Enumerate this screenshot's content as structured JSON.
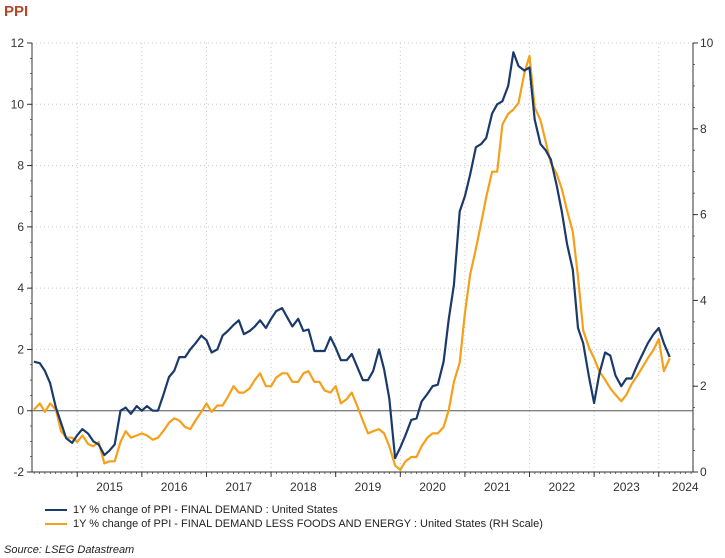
{
  "header": {
    "title": "PPI"
  },
  "source": "Source:  LSEG Datastream",
  "colors": {
    "series1": "#1a3a6b",
    "series2": "#f5a01a",
    "grid": "#c8c8c8",
    "axis": "#333333",
    "title": "#b5482b"
  },
  "chart_data": {
    "type": "line",
    "title": "PPI",
    "x_axis": {
      "min": 2014.3,
      "max": 2024.53,
      "tick_labels": [
        "2015",
        "2016",
        "2017",
        "2018",
        "2019",
        "2020",
        "2021",
        "2022",
        "2023",
        "2024"
      ]
    },
    "y_left": {
      "min": -2,
      "max": 12,
      "ticks": [
        -2,
        0,
        2,
        4,
        6,
        8,
        10,
        12
      ]
    },
    "y_right": {
      "min": 0,
      "max": 10,
      "ticks": [
        0,
        2,
        4,
        6,
        8,
        10
      ]
    },
    "grid": true,
    "legend_position": "bottom",
    "series": [
      {
        "name": "1Y % change of PPI - FINAL DEMAND : United States",
        "axis": "left",
        "points": [
          [
            2014.33,
            1.6
          ],
          [
            2014.42,
            1.55
          ],
          [
            2014.5,
            1.3
          ],
          [
            2014.58,
            0.9
          ],
          [
            2014.67,
            0.1
          ],
          [
            2014.75,
            -0.4
          ],
          [
            2014.83,
            -0.9
          ],
          [
            2014.92,
            -1.05
          ],
          [
            2015.0,
            -0.8
          ],
          [
            2015.08,
            -0.6
          ],
          [
            2015.17,
            -0.75
          ],
          [
            2015.25,
            -1.0
          ],
          [
            2015.33,
            -1.1
          ],
          [
            2015.42,
            -1.45
          ],
          [
            2015.5,
            -1.3
          ],
          [
            2015.58,
            -1.1
          ],
          [
            2015.67,
            0.0
          ],
          [
            2015.75,
            0.1
          ],
          [
            2015.83,
            -0.1
          ],
          [
            2015.92,
            0.15
          ],
          [
            2016.0,
            0.0
          ],
          [
            2016.08,
            0.15
          ],
          [
            2016.17,
            0.0
          ],
          [
            2016.25,
            0.0
          ],
          [
            2016.33,
            0.5
          ],
          [
            2016.42,
            1.1
          ],
          [
            2016.5,
            1.3
          ],
          [
            2016.58,
            1.75
          ],
          [
            2016.67,
            1.75
          ],
          [
            2016.75,
            2.0
          ],
          [
            2016.83,
            2.2
          ],
          [
            2016.92,
            2.45
          ],
          [
            2017.0,
            2.3
          ],
          [
            2017.08,
            1.9
          ],
          [
            2017.17,
            2.0
          ],
          [
            2017.25,
            2.45
          ],
          [
            2017.33,
            2.6
          ],
          [
            2017.42,
            2.8
          ],
          [
            2017.5,
            2.95
          ],
          [
            2017.58,
            2.5
          ],
          [
            2017.67,
            2.6
          ],
          [
            2017.75,
            2.75
          ],
          [
            2017.83,
            2.95
          ],
          [
            2017.92,
            2.7
          ],
          [
            2018.0,
            3.0
          ],
          [
            2018.08,
            3.25
          ],
          [
            2018.17,
            3.35
          ],
          [
            2018.25,
            3.05
          ],
          [
            2018.33,
            2.75
          ],
          [
            2018.42,
            3.0
          ],
          [
            2018.5,
            2.6
          ],
          [
            2018.58,
            2.65
          ],
          [
            2018.67,
            1.95
          ],
          [
            2018.75,
            1.95
          ],
          [
            2018.83,
            1.95
          ],
          [
            2018.92,
            2.4
          ],
          [
            2019.0,
            2.05
          ],
          [
            2019.08,
            1.65
          ],
          [
            2019.17,
            1.65
          ],
          [
            2019.25,
            1.85
          ],
          [
            2019.33,
            1.45
          ],
          [
            2019.42,
            1.0
          ],
          [
            2019.5,
            1.0
          ],
          [
            2019.58,
            1.3
          ],
          [
            2019.67,
            2.0
          ],
          [
            2019.75,
            1.35
          ],
          [
            2019.83,
            0.4
          ],
          [
            2019.92,
            -1.55
          ],
          [
            2020.0,
            -1.2
          ],
          [
            2020.08,
            -0.8
          ],
          [
            2020.17,
            -0.3
          ],
          [
            2020.25,
            -0.25
          ],
          [
            2020.33,
            0.3
          ],
          [
            2020.42,
            0.55
          ],
          [
            2020.5,
            0.8
          ],
          [
            2020.58,
            0.85
          ],
          [
            2020.67,
            1.6
          ],
          [
            2020.75,
            3.0
          ],
          [
            2020.83,
            4.1
          ],
          [
            2020.92,
            6.5
          ],
          [
            2021.0,
            7.0
          ],
          [
            2021.08,
            7.7
          ],
          [
            2021.17,
            8.6
          ],
          [
            2021.25,
            8.7
          ],
          [
            2021.33,
            8.9
          ],
          [
            2021.42,
            9.7
          ],
          [
            2021.5,
            10.0
          ],
          [
            2021.58,
            10.1
          ],
          [
            2021.67,
            10.6
          ],
          [
            2021.75,
            11.7
          ],
          [
            2021.83,
            11.25
          ],
          [
            2021.92,
            11.1
          ],
          [
            2022.0,
            11.2
          ],
          [
            2022.08,
            9.5
          ],
          [
            2022.17,
            8.7
          ],
          [
            2022.25,
            8.5
          ],
          [
            2022.33,
            8.2
          ],
          [
            2022.42,
            7.35
          ],
          [
            2022.5,
            6.5
          ],
          [
            2022.58,
            5.45
          ],
          [
            2022.67,
            4.6
          ],
          [
            2022.75,
            2.7
          ],
          [
            2022.83,
            2.2
          ],
          [
            2022.92,
            1.1
          ],
          [
            2023.0,
            0.25
          ],
          [
            2023.08,
            1.2
          ],
          [
            2023.17,
            1.9
          ],
          [
            2023.25,
            1.8
          ],
          [
            2023.33,
            1.15
          ],
          [
            2023.42,
            0.8
          ],
          [
            2023.5,
            1.05
          ],
          [
            2023.58,
            1.05
          ],
          [
            2023.67,
            1.5
          ],
          [
            2023.75,
            1.85
          ],
          [
            2023.83,
            2.2
          ],
          [
            2023.92,
            2.5
          ],
          [
            2024.0,
            2.7
          ],
          [
            2024.08,
            2.2
          ],
          [
            2024.17,
            1.75
          ]
        ]
      },
      {
        "name": "1Y % change of PPI - FINAL DEMAND LESS FOODS AND ENERGY : United States (RH Scale)",
        "axis": "right",
        "points": [
          [
            2014.33,
            1.45
          ],
          [
            2014.42,
            1.6
          ],
          [
            2014.5,
            1.4
          ],
          [
            2014.58,
            1.6
          ],
          [
            2014.67,
            1.45
          ],
          [
            2014.75,
            0.95
          ],
          [
            2014.83,
            0.8
          ],
          [
            2014.92,
            0.8
          ],
          [
            2015.0,
            0.7
          ],
          [
            2015.08,
            0.85
          ],
          [
            2015.17,
            0.65
          ],
          [
            2015.25,
            0.6
          ],
          [
            2015.33,
            0.7
          ],
          [
            2015.42,
            0.2
          ],
          [
            2015.5,
            0.25
          ],
          [
            2015.58,
            0.25
          ],
          [
            2015.67,
            0.7
          ],
          [
            2015.75,
            0.95
          ],
          [
            2015.83,
            0.8
          ],
          [
            2015.92,
            0.85
          ],
          [
            2016.0,
            0.9
          ],
          [
            2016.08,
            0.85
          ],
          [
            2016.17,
            0.75
          ],
          [
            2016.25,
            0.8
          ],
          [
            2016.33,
            0.95
          ],
          [
            2016.42,
            1.15
          ],
          [
            2016.5,
            1.25
          ],
          [
            2016.58,
            1.2
          ],
          [
            2016.67,
            1.05
          ],
          [
            2016.75,
            1.0
          ],
          [
            2016.83,
            1.2
          ],
          [
            2016.92,
            1.4
          ],
          [
            2017.0,
            1.6
          ],
          [
            2017.08,
            1.4
          ],
          [
            2017.17,
            1.55
          ],
          [
            2017.25,
            1.55
          ],
          [
            2017.33,
            1.75
          ],
          [
            2017.42,
            2.0
          ],
          [
            2017.5,
            1.85
          ],
          [
            2017.58,
            1.85
          ],
          [
            2017.67,
            1.95
          ],
          [
            2017.75,
            2.15
          ],
          [
            2017.83,
            2.3
          ],
          [
            2017.92,
            2.0
          ],
          [
            2018.0,
            2.0
          ],
          [
            2018.08,
            2.2
          ],
          [
            2018.17,
            2.3
          ],
          [
            2018.25,
            2.3
          ],
          [
            2018.33,
            2.1
          ],
          [
            2018.42,
            2.1
          ],
          [
            2018.5,
            2.3
          ],
          [
            2018.58,
            2.35
          ],
          [
            2018.67,
            2.1
          ],
          [
            2018.75,
            2.1
          ],
          [
            2018.83,
            1.9
          ],
          [
            2018.92,
            1.85
          ],
          [
            2019.0,
            2.0
          ],
          [
            2019.08,
            1.6
          ],
          [
            2019.17,
            1.7
          ],
          [
            2019.25,
            1.85
          ],
          [
            2019.33,
            1.55
          ],
          [
            2019.42,
            1.2
          ],
          [
            2019.5,
            0.9
          ],
          [
            2019.58,
            0.95
          ],
          [
            2019.67,
            1.0
          ],
          [
            2019.75,
            0.9
          ],
          [
            2019.83,
            0.6
          ],
          [
            2019.92,
            0.15
          ],
          [
            2020.0,
            0.05
          ],
          [
            2020.08,
            0.25
          ],
          [
            2020.17,
            0.35
          ],
          [
            2020.25,
            0.35
          ],
          [
            2020.33,
            0.6
          ],
          [
            2020.42,
            0.8
          ],
          [
            2020.5,
            0.9
          ],
          [
            2020.58,
            0.9
          ],
          [
            2020.67,
            1.05
          ],
          [
            2020.75,
            1.45
          ],
          [
            2020.83,
            2.1
          ],
          [
            2020.92,
            2.55
          ],
          [
            2021.0,
            3.7
          ],
          [
            2021.08,
            4.6
          ],
          [
            2021.17,
            5.2
          ],
          [
            2021.25,
            5.8
          ],
          [
            2021.33,
            6.4
          ],
          [
            2021.42,
            7.0
          ],
          [
            2021.5,
            7.0
          ],
          [
            2021.58,
            8.1
          ],
          [
            2021.67,
            8.35
          ],
          [
            2021.75,
            8.45
          ],
          [
            2021.83,
            8.6
          ],
          [
            2021.92,
            9.3
          ],
          [
            2022.0,
            9.7
          ],
          [
            2022.08,
            8.5
          ],
          [
            2022.17,
            8.2
          ],
          [
            2022.25,
            7.7
          ],
          [
            2022.33,
            7.2
          ],
          [
            2022.42,
            6.95
          ],
          [
            2022.5,
            6.6
          ],
          [
            2022.58,
            6.1
          ],
          [
            2022.67,
            5.6
          ],
          [
            2022.75,
            4.55
          ],
          [
            2022.83,
            3.3
          ],
          [
            2022.92,
            2.9
          ],
          [
            2023.0,
            2.65
          ],
          [
            2023.08,
            2.35
          ],
          [
            2023.17,
            2.15
          ],
          [
            2023.25,
            1.95
          ],
          [
            2023.33,
            1.8
          ],
          [
            2023.42,
            1.65
          ],
          [
            2023.5,
            1.8
          ],
          [
            2023.58,
            2.05
          ],
          [
            2023.67,
            2.25
          ],
          [
            2023.75,
            2.45
          ],
          [
            2023.83,
            2.65
          ],
          [
            2023.92,
            2.85
          ],
          [
            2024.0,
            3.1
          ],
          [
            2024.08,
            2.35
          ],
          [
            2024.17,
            2.65
          ]
        ]
      }
    ]
  }
}
